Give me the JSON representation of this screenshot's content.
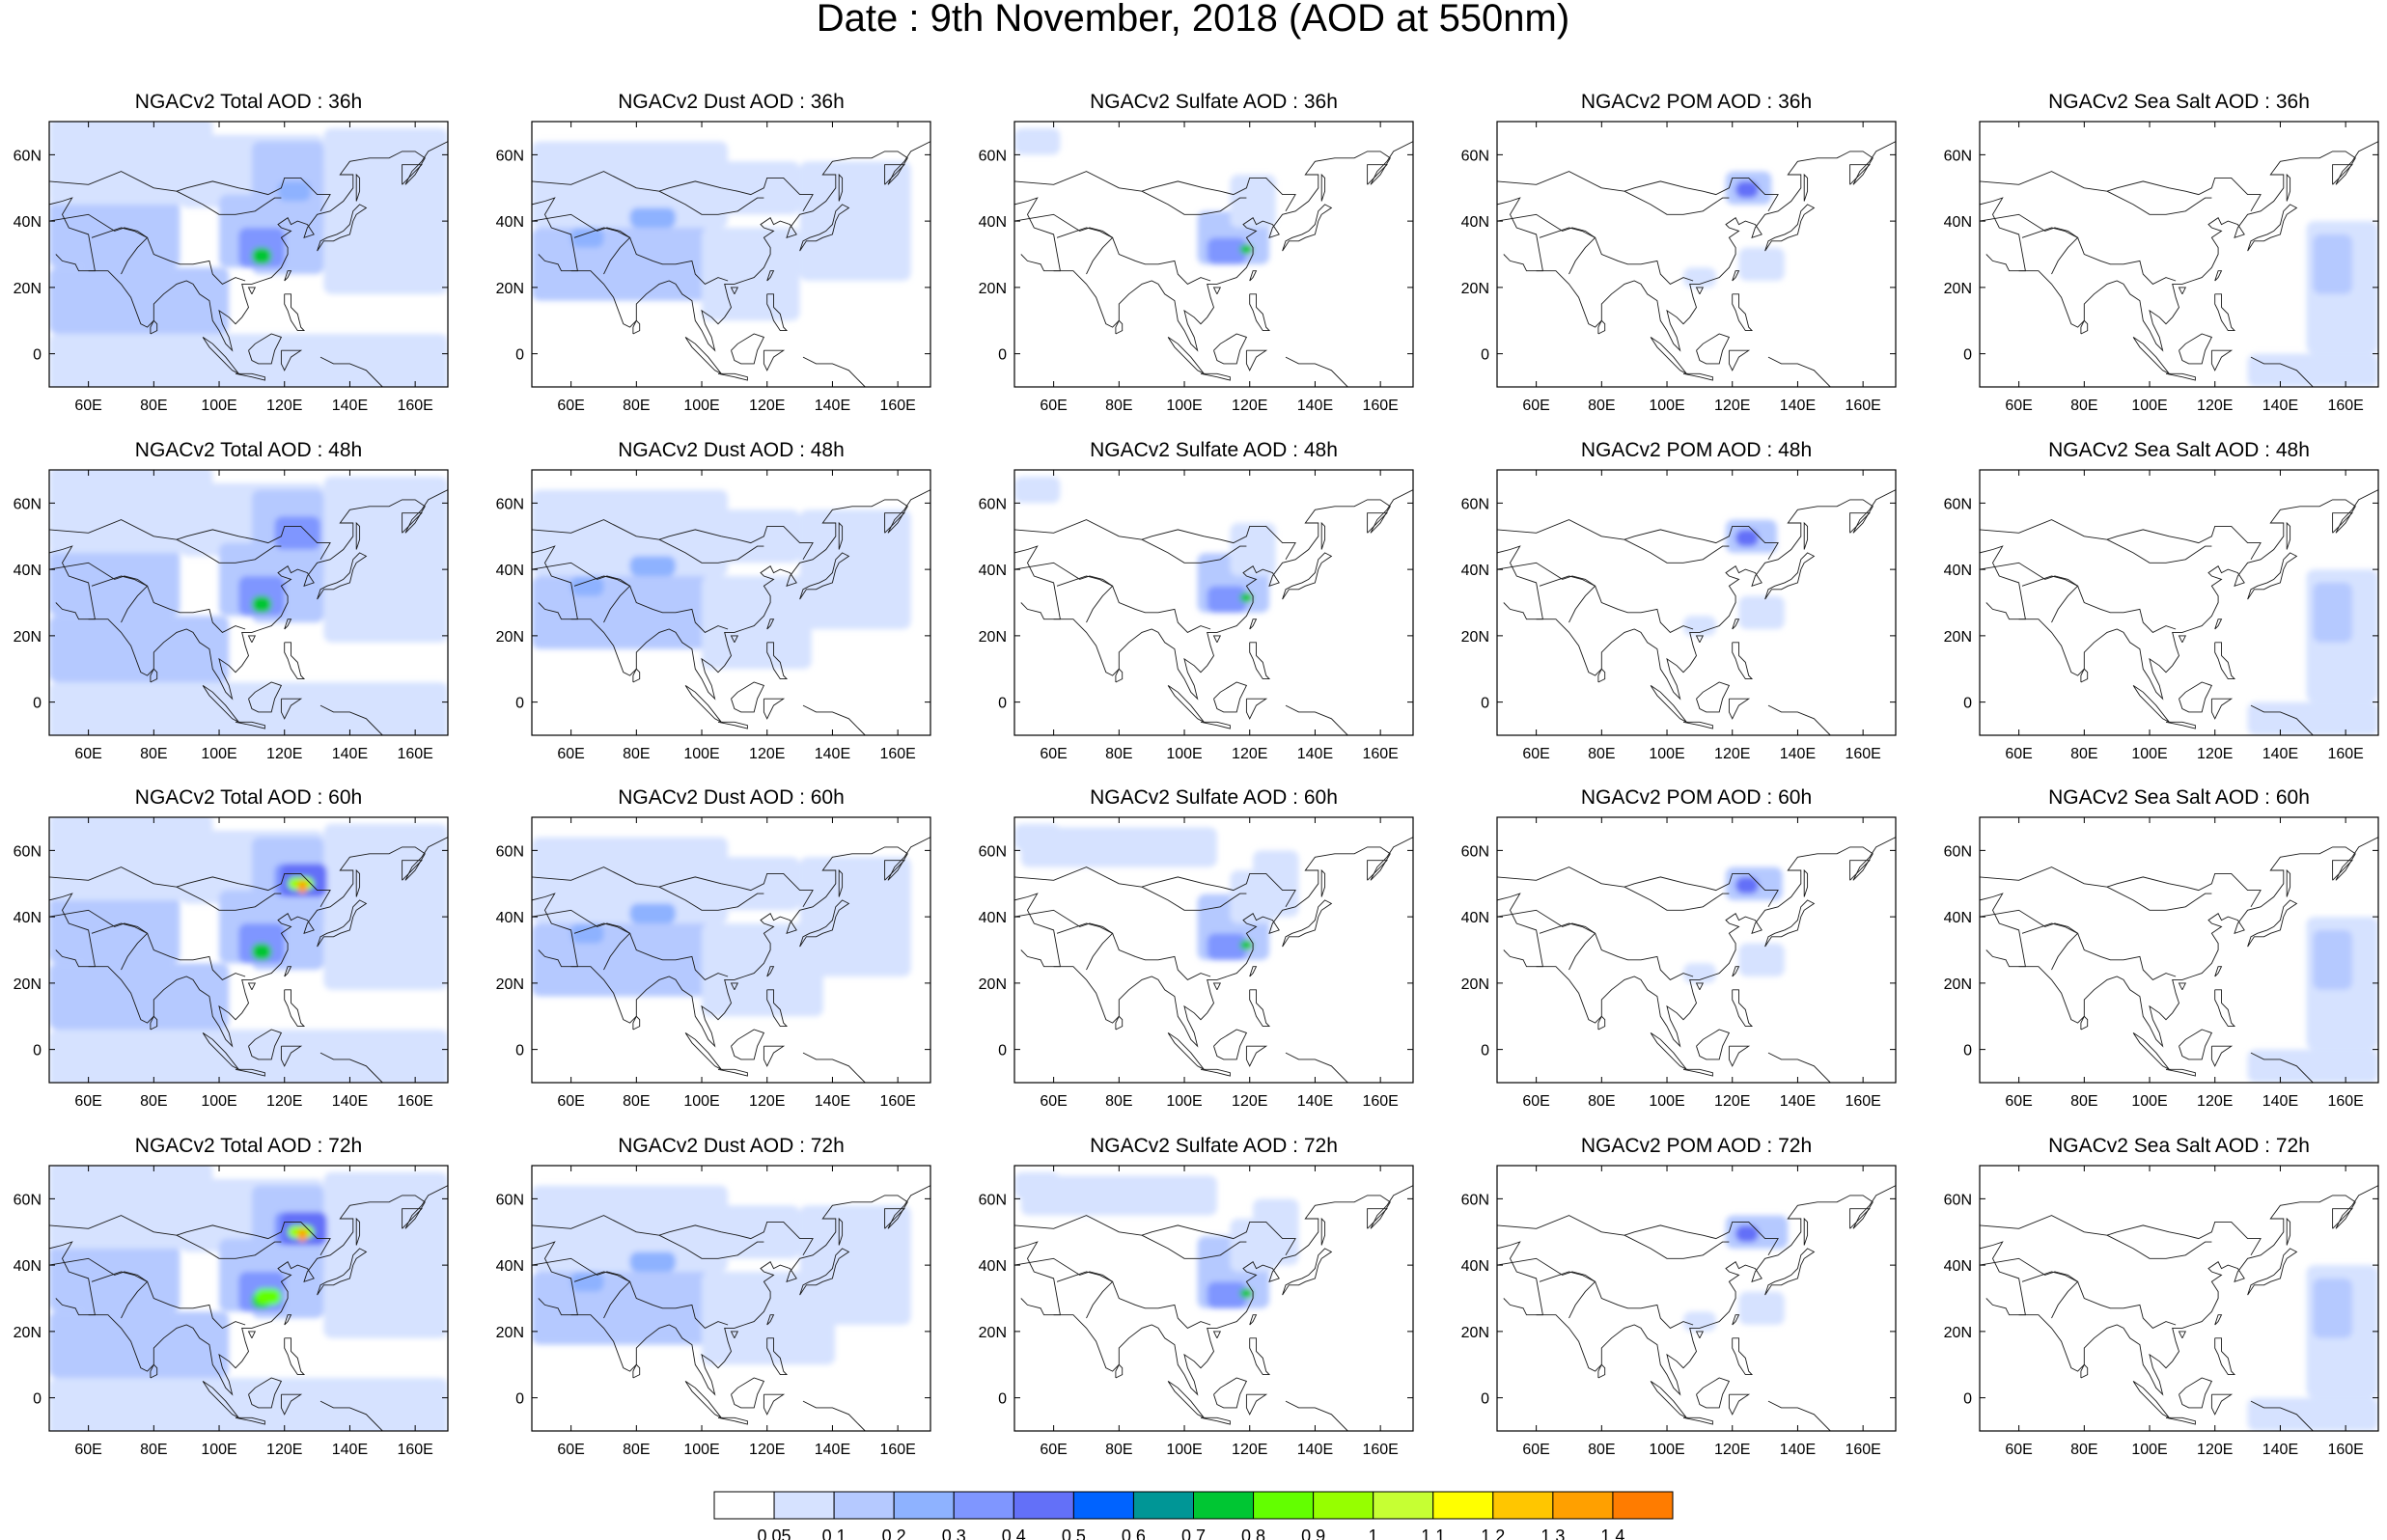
{
  "title": "Date : 9th November, 2018 (AOD at 550nm)",
  "axes": {
    "x_ticks": [
      "60E",
      "80E",
      "100E",
      "120E",
      "140E",
      "160E"
    ],
    "y_ticks": [
      "60N",
      "40N",
      "20N",
      "0"
    ]
  },
  "panels": [
    [
      "NGACv2 Total AOD : 36h",
      "NGACv2 Dust AOD : 36h",
      "NGACv2 Sulfate AOD : 36h",
      "NGACv2 POM AOD : 36h",
      "NGACv2 Sea Salt AOD : 36h"
    ],
    [
      "NGACv2 Total AOD : 48h",
      "NGACv2 Dust AOD : 48h",
      "NGACv2 Sulfate AOD : 48h",
      "NGACv2 POM AOD : 48h",
      "NGACv2 Sea Salt AOD : 48h"
    ],
    [
      "NGACv2 Total AOD : 60h",
      "NGACv2 Dust AOD : 60h",
      "NGACv2 Sulfate AOD : 60h",
      "NGACv2 POM AOD : 60h",
      "NGACv2 Sea Salt AOD : 60h"
    ],
    [
      "NGACv2 Total AOD : 72h",
      "NGACv2 Dust AOD : 72h",
      "NGACv2 Sulfate AOD : 72h",
      "NGACv2 POM AOD : 72h",
      "NGACv2 Sea Salt  AOD : 72h"
    ]
  ],
  "colorbar": {
    "labels": [
      "0.05",
      "0.1",
      "0.2",
      "0.3",
      "0.4",
      "0.5",
      "0.6",
      "0.7",
      "0.8",
      "0.9",
      "1",
      "1.1",
      "1.2",
      "1.3",
      "1.4"
    ],
    "colors": [
      "#ffffff",
      "#d6e2ff",
      "#b5c9ff",
      "#8eb2ff",
      "#7f96ff",
      "#6370f8",
      "#0063ff",
      "#009696",
      "#00c633",
      "#63ff00",
      "#96ff00",
      "#c6ff33",
      "#ffff00",
      "#ffc600",
      "#ffa000",
      "#ff7c00",
      "#ff1900"
    ]
  },
  "map_data": {
    "type": "gridded-map",
    "variable": "AOD at 550nm",
    "lon_range": [
      48,
      170
    ],
    "lat_range": [
      -10,
      70
    ],
    "species": [
      "Total",
      "Dust",
      "Sulfate",
      "POM",
      "Sea Salt"
    ],
    "forecast_hours": [
      "36h",
      "48h",
      "60h",
      "72h"
    ]
  }
}
